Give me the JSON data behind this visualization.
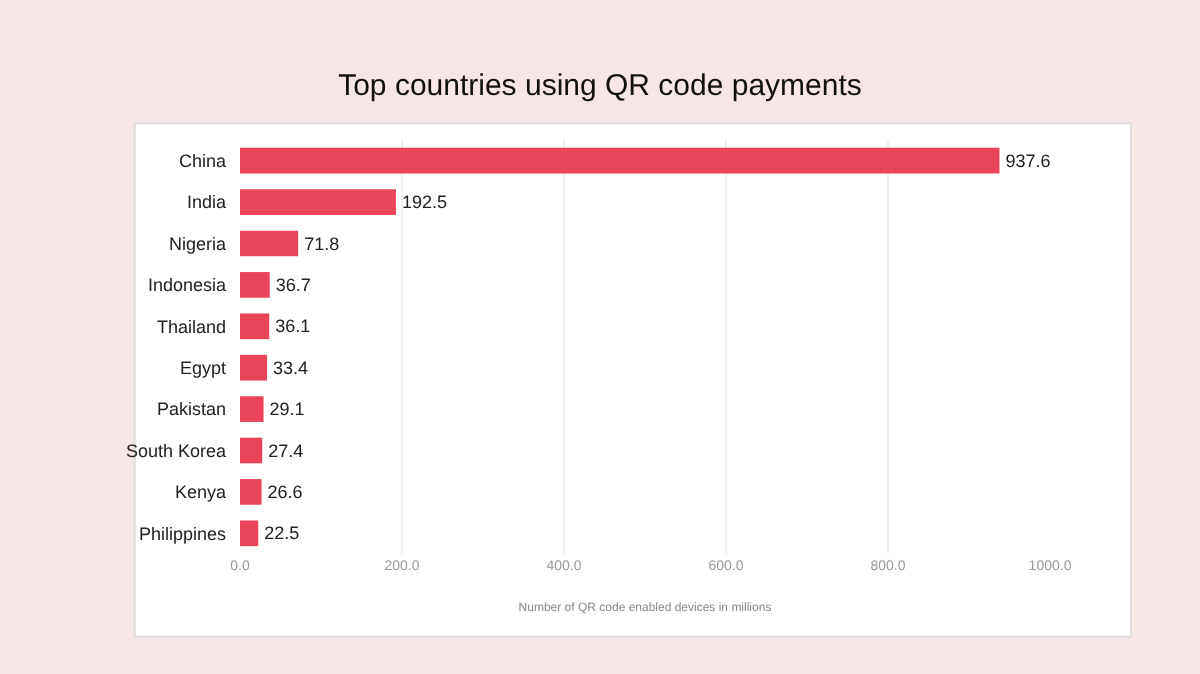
{
  "chart_data": {
    "type": "bar",
    "orientation": "horizontal",
    "title": "Top countries using QR code payments",
    "xlabel": "Number of QR code enabled devices in millions",
    "categories": [
      "China",
      "India",
      "Nigeria",
      "Indonesia",
      "Thailand",
      "Egypt",
      "Pakistan",
      "South Korea",
      "Kenya",
      "Philippines"
    ],
    "values": [
      937.6,
      192.5,
      71.8,
      36.7,
      36.1,
      33.4,
      29.1,
      27.4,
      26.6,
      22.5
    ],
    "color": "#e9445a",
    "xlim": [
      0,
      1000
    ],
    "xticks": [
      {
        "value": 0,
        "label": "0.0"
      },
      {
        "value": 200,
        "label": "200.0"
      },
      {
        "value": 400,
        "label": "400.0"
      },
      {
        "value": 600,
        "label": "600.0"
      },
      {
        "value": 800,
        "label": "800.0"
      },
      {
        "value": 1000,
        "label": "1000.0"
      }
    ],
    "data_labels": true,
    "grid": "x"
  }
}
